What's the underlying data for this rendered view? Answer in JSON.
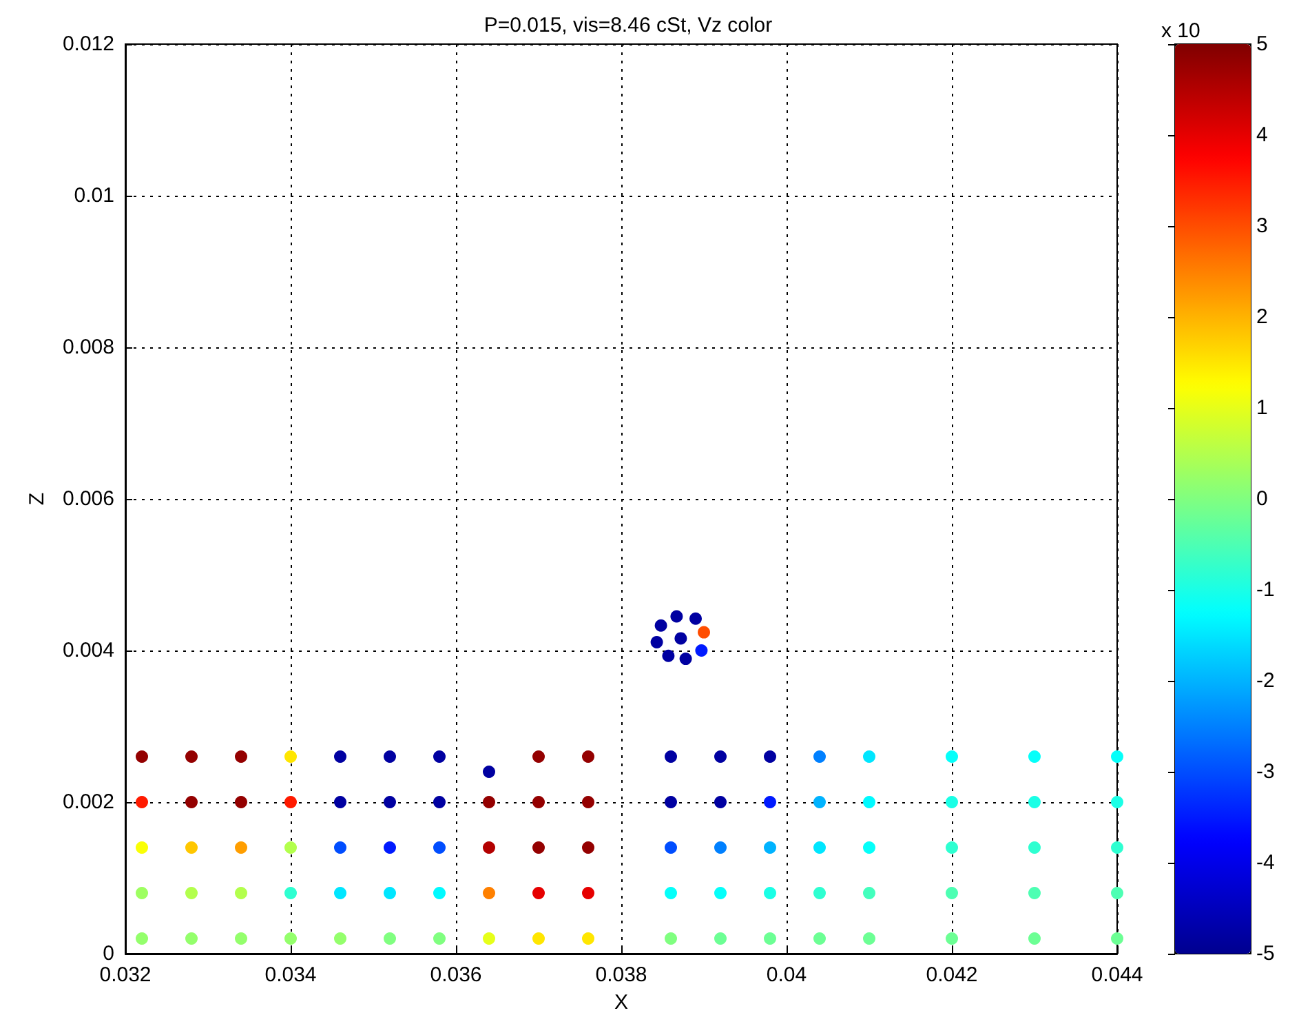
{
  "chart_data": {
    "type": "scatter",
    "title": "P=0.015, vis=8.46 cSt, Vz color",
    "xlabel": "X",
    "ylabel": "Z",
    "clabel": "x 10",
    "xlim": [
      0.032,
      0.044
    ],
    "xticks": [
      0.032,
      0.034,
      0.036,
      0.038,
      0.04,
      0.042,
      0.044
    ],
    "ylim": [
      0,
      0.012
    ],
    "yticks": [
      0,
      0.002,
      0.004,
      0.006,
      0.008,
      0.01,
      0.012
    ],
    "clim": [
      -5,
      5
    ],
    "cticks": [
      -5,
      -4,
      -3,
      -2,
      -1,
      0,
      1,
      2,
      3,
      4,
      5
    ],
    "grid": true,
    "marker": "circle",
    "series": [
      {
        "x": [
          0.0322,
          0.0328,
          0.0334,
          0.034,
          0.0346,
          0.0352,
          0.0358,
          0.0364,
          0.037,
          0.0376,
          0.0386,
          0.0392,
          0.0398,
          0.0404,
          0.041,
          0.042,
          0.043,
          0.044,
          0.0322,
          0.0328,
          0.0334,
          0.034,
          0.0346,
          0.0352,
          0.0358,
          0.0364,
          0.037,
          0.0376,
          0.0386,
          0.0392,
          0.0398,
          0.0404,
          0.041,
          0.042,
          0.043,
          0.044,
          0.0322,
          0.0328,
          0.0334,
          0.034,
          0.0346,
          0.0352,
          0.0358,
          0.0364,
          0.037,
          0.0376,
          0.0386,
          0.0392,
          0.0398,
          0.0404,
          0.041,
          0.042,
          0.043,
          0.044,
          0.0322,
          0.0328,
          0.0334,
          0.034,
          0.0346,
          0.0352,
          0.0358,
          0.0364,
          0.037,
          0.0376,
          0.0386,
          0.0392,
          0.0398,
          0.0404,
          0.041,
          0.042,
          0.043,
          0.044,
          0.0322,
          0.0328,
          0.0334,
          0.034,
          0.0346,
          0.0352,
          0.0358,
          0.0364,
          0.037,
          0.0376,
          0.0386,
          0.0392,
          0.0398,
          0.0404,
          0.041,
          0.042,
          0.043,
          0.044,
          0.03848,
          0.03867,
          0.0389,
          0.039,
          0.03897,
          0.03878,
          0.03857,
          0.03843,
          0.03872
        ],
        "values": [
          0.0002,
          0.0002,
          0.0002,
          0.0002,
          0.0002,
          0.0002,
          0.0002,
          0.0002,
          0.0002,
          0.0002,
          0.0002,
          0.0002,
          0.0002,
          0.0002,
          0.0002,
          0.0002,
          0.0002,
          0.0002,
          0.0008,
          0.0008,
          0.0008,
          0.0008,
          0.0008,
          0.0008,
          0.0008,
          0.0008,
          0.0008,
          0.0008,
          0.0008,
          0.0008,
          0.0008,
          0.0008,
          0.0008,
          0.0008,
          0.0008,
          0.0008,
          0.0014,
          0.0014,
          0.0014,
          0.0014,
          0.0014,
          0.0014,
          0.0014,
          0.0014,
          0.0014,
          0.0014,
          0.0014,
          0.0014,
          0.0014,
          0.0014,
          0.0014,
          0.0014,
          0.0014,
          0.0014,
          0.002,
          0.002,
          0.002,
          0.002,
          0.002,
          0.002,
          0.002,
          0.002,
          0.002,
          0.002,
          0.002,
          0.002,
          0.002,
          0.002,
          0.002,
          0.002,
          0.002,
          0.002,
          0.0026,
          0.0026,
          0.0026,
          0.0026,
          0.0026,
          0.0026,
          0.0026,
          0.0024,
          0.0026,
          0.0026,
          0.0026,
          0.0026,
          0.0026,
          0.0026,
          0.0026,
          0.0026,
          0.0026,
          0.0026,
          0.00433,
          0.00445,
          0.00442,
          0.00424,
          0.004,
          0.00389,
          0.00393,
          0.00411,
          0.00416
        ],
        "cvalues": [
          0.2,
          0.2,
          0.2,
          0.2,
          0.2,
          0,
          0,
          1,
          1.5,
          1.5,
          0,
          -0.2,
          -0.2,
          -0.2,
          -0.2,
          -0.2,
          -0.2,
          -0.2,
          0.3,
          0.5,
          0.5,
          -0.8,
          -1.5,
          -1.5,
          -1.3,
          2.5,
          4,
          4,
          -1.2,
          -1.2,
          -1,
          -0.8,
          -0.6,
          -0.5,
          -0.5,
          -0.5,
          1.2,
          1.8,
          2.2,
          0.5,
          -3,
          -3.5,
          -3,
          4.5,
          4.8,
          4.8,
          -3,
          -2.5,
          -2,
          -1.5,
          -1.2,
          -0.8,
          -0.8,
          -0.8,
          3.5,
          4.8,
          4.8,
          3.5,
          -4.8,
          -4.8,
          -4.8,
          4.8,
          4.8,
          4.8,
          -4.8,
          -4.8,
          -3.5,
          -2,
          -1.3,
          -1,
          -1,
          -1,
          4.8,
          4.8,
          4.8,
          1.5,
          -4.8,
          -4.8,
          -4.8,
          -4.8,
          4.8,
          4.8,
          -4.8,
          -4.8,
          -4.8,
          -2.5,
          -1.5,
          -1.2,
          -1.2,
          -1.2,
          -4.8,
          -4.8,
          -4.8,
          3,
          -3.5,
          -4.8,
          -4.8,
          -4.8,
          -4.8
        ]
      }
    ]
  }
}
